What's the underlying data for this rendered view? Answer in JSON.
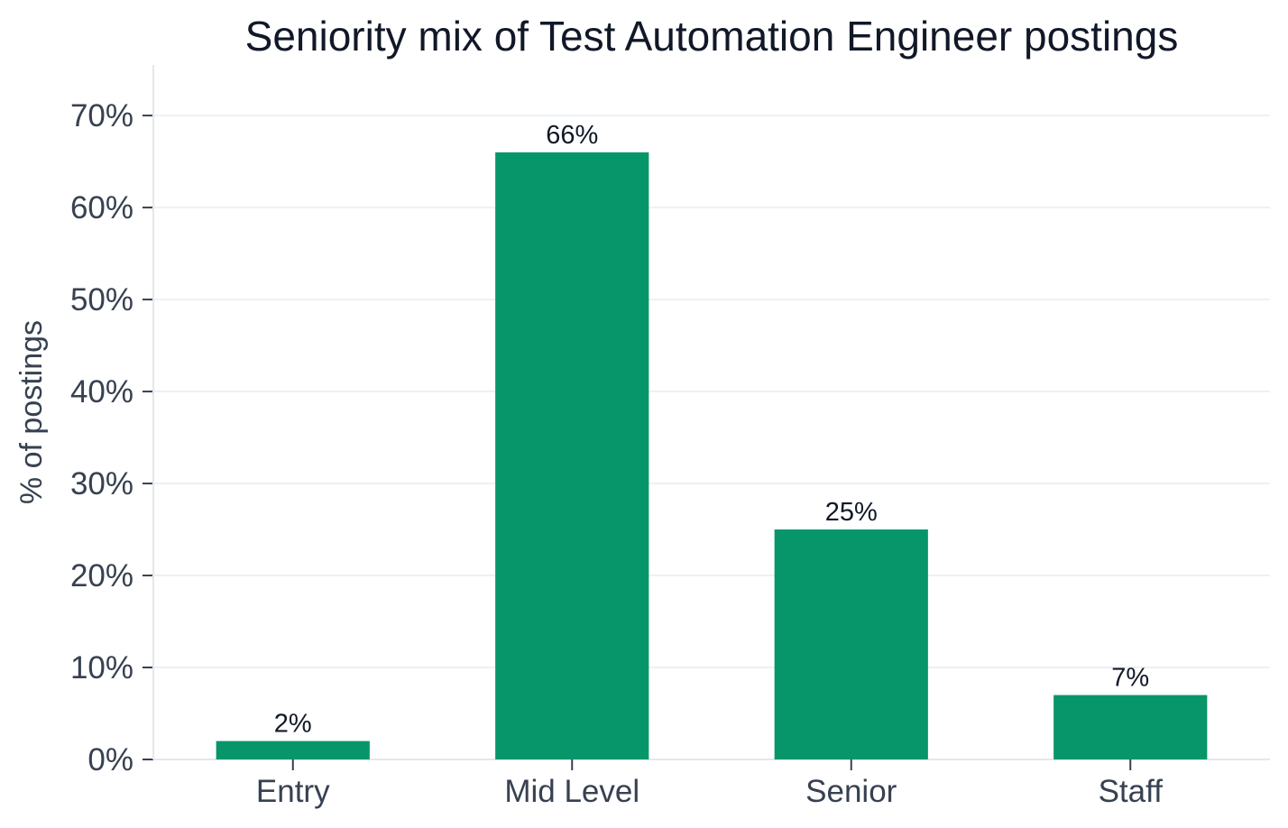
{
  "chart_data": {
    "type": "bar",
    "title": "Seniority mix of Test Automation Engineer postings",
    "xlabel": "",
    "ylabel": "% of postings",
    "categories": [
      "Entry",
      "Mid Level",
      "Senior",
      "Staff"
    ],
    "values": [
      2,
      66,
      25,
      7
    ],
    "value_labels": [
      "2%",
      "66%",
      "25%",
      "7%"
    ],
    "ylim": [
      0,
      75.5
    ],
    "yticks": [
      0,
      10,
      20,
      30,
      40,
      50,
      60,
      70
    ],
    "ytick_labels": [
      "0%",
      "10%",
      "20%",
      "30%",
      "40%",
      "50%",
      "60%",
      "70%"
    ],
    "grid": "horizontal",
    "legend": "none",
    "colors": {
      "bar": "#06966A",
      "grid": "#EEF0F3",
      "axis": "#E5E7EB",
      "tick": "#374151",
      "title": "#111827"
    }
  }
}
